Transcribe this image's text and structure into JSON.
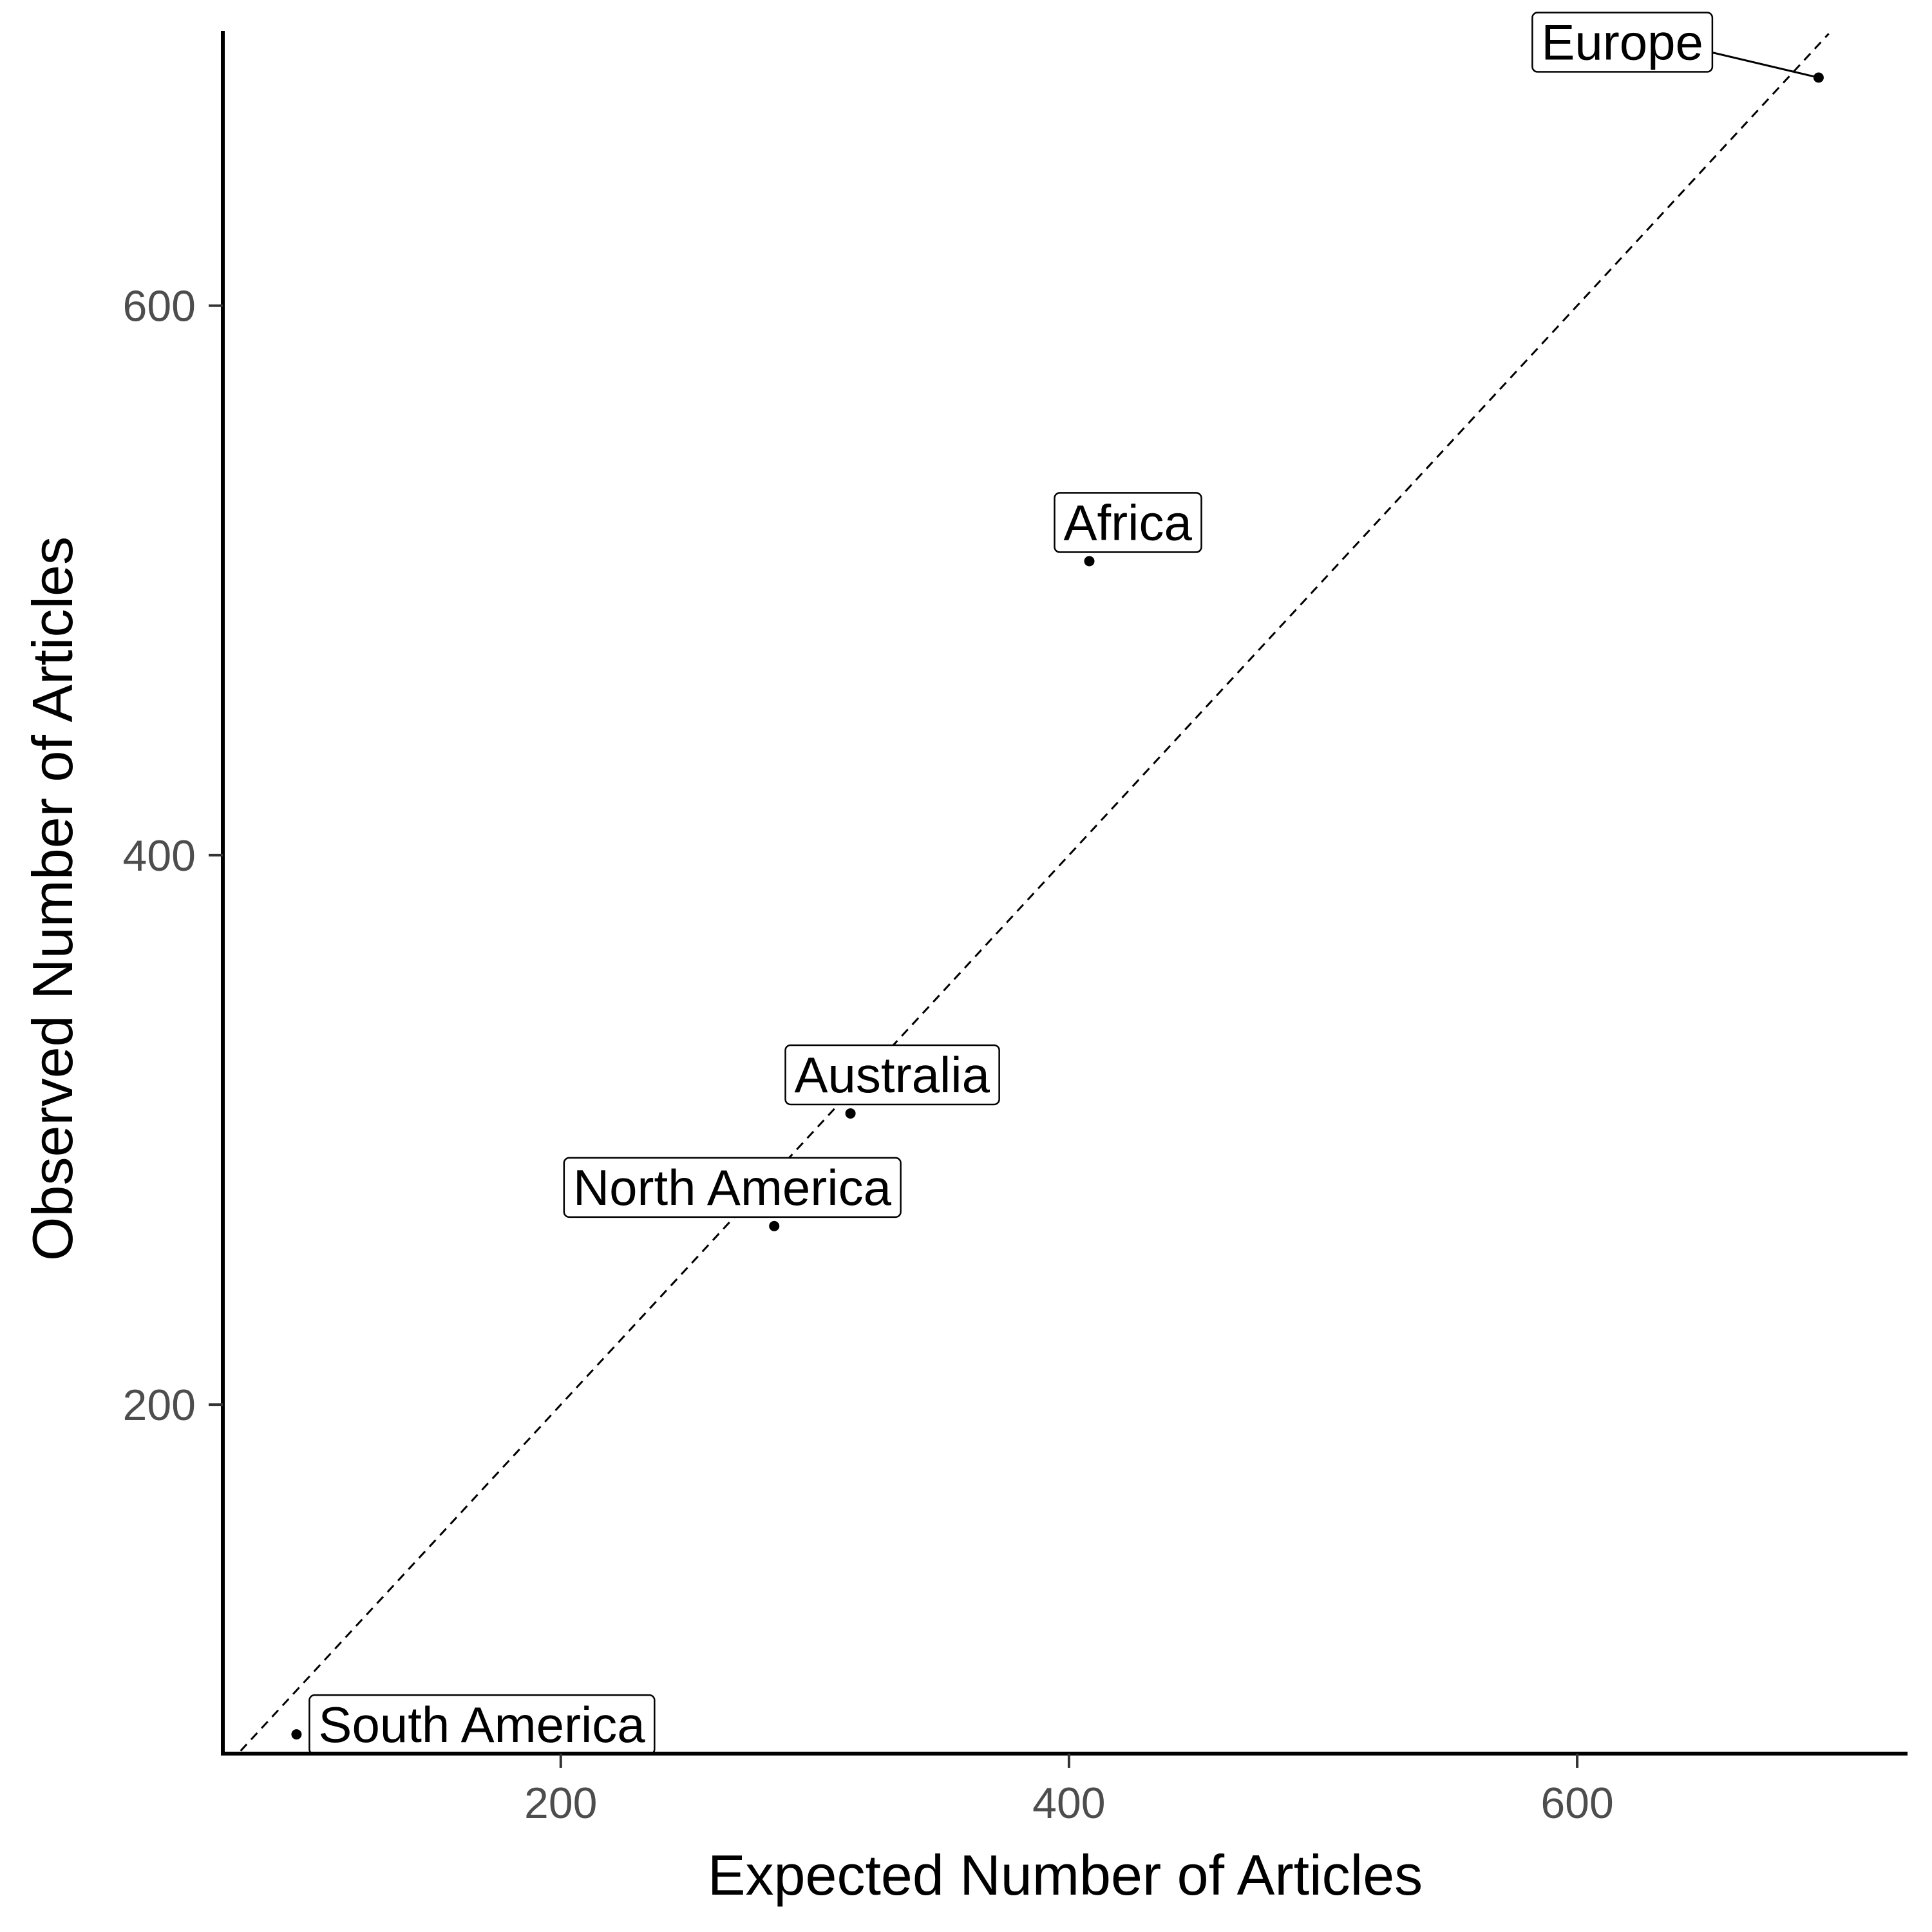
{
  "chart_data": {
    "type": "scatter",
    "title": "",
    "xlabel": "Expected Number of Articles",
    "ylabel": "Observed Number of Articles",
    "xlim": [
      67,
      730
    ],
    "ylim": [
      73,
      700
    ],
    "x_ticks": [
      200,
      400,
      600
    ],
    "y_ticks": [
      200,
      400,
      600
    ],
    "grid": false,
    "legend": "none",
    "reference_line": {
      "style": "dashed",
      "slope": 1,
      "intercept": 0
    },
    "points": [
      {
        "label": "Europe",
        "x": 695,
        "y": 683
      },
      {
        "label": "Africa",
        "x": 408,
        "y": 507
      },
      {
        "label": "Australia",
        "x": 314,
        "y": 306
      },
      {
        "label": "North America",
        "x": 284,
        "y": 265
      },
      {
        "label": "South America",
        "x": 96,
        "y": 80
      }
    ]
  }
}
